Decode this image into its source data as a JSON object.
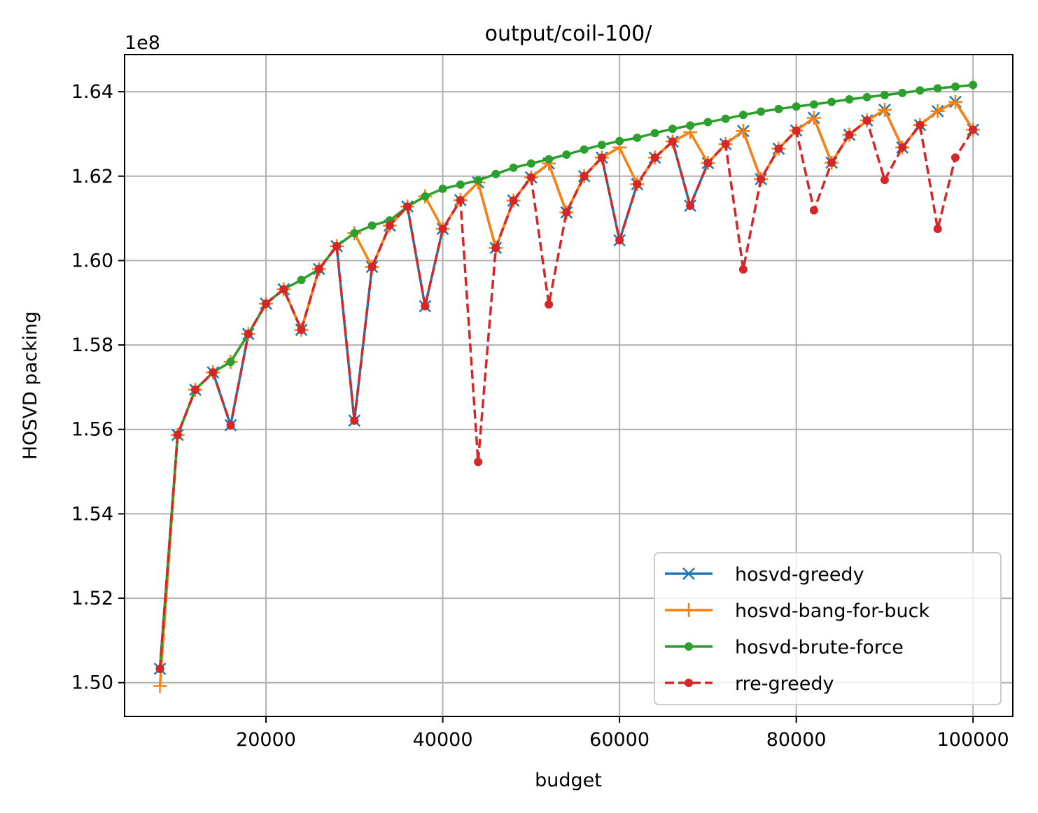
{
  "chart_data": {
    "type": "line",
    "title": "output/coil-100/",
    "xlabel": "budget",
    "ylabel": "HOSVD packing",
    "y_offset_label": "1e8",
    "y_scale": 100000000,
    "xlim": [
      4000,
      104500
    ],
    "ylim": [
      1.492,
      1.6488
    ],
    "x_ticks": [
      20000,
      40000,
      60000,
      80000,
      100000
    ],
    "x_tick_labels": [
      "20000",
      "40000",
      "60000",
      "80000",
      "100000"
    ],
    "y_ticks": [
      1.5,
      1.52,
      1.54,
      1.56,
      1.58,
      1.6,
      1.62,
      1.64
    ],
    "y_tick_labels": [
      "1.50",
      "1.52",
      "1.54",
      "1.56",
      "1.58",
      "1.60",
      "1.62",
      "1.64"
    ],
    "grid": true,
    "legend_position": "lower-right",
    "x": [
      8000,
      10000,
      12000,
      14000,
      16000,
      18000,
      20000,
      22000,
      24000,
      26000,
      28000,
      30000,
      32000,
      34000,
      36000,
      38000,
      40000,
      42000,
      44000,
      46000,
      48000,
      50000,
      52000,
      54000,
      56000,
      58000,
      60000,
      62000,
      64000,
      66000,
      68000,
      70000,
      72000,
      74000,
      76000,
      78000,
      80000,
      82000,
      84000,
      86000,
      88000,
      90000,
      92000,
      94000,
      96000,
      98000,
      100000
    ],
    "series": [
      {
        "name": "hosvd-greedy",
        "color": "#1f77b4",
        "marker": "x",
        "linestyle": "solid",
        "values": [
          1.5033,
          1.5587,
          1.5694,
          1.5735,
          1.561,
          1.5826,
          1.5898,
          1.5932,
          1.5836,
          1.598,
          1.6034,
          1.5621,
          1.5985,
          1.6083,
          1.6128,
          1.5892,
          1.6075,
          1.6143,
          1.6185,
          1.603,
          1.6142,
          1.6197,
          1.623,
          1.6114,
          1.62,
          1.6244,
          1.6048,
          1.6181,
          1.6244,
          1.6282,
          1.613,
          1.6231,
          1.6276,
          1.6307,
          1.6193,
          1.6265,
          1.6308,
          1.6338,
          1.6232,
          1.6298,
          1.6332,
          1.6357,
          1.6268,
          1.6321,
          1.6354,
          1.6376,
          1.631
        ]
      },
      {
        "name": "hosvd-bang-for-buck",
        "color": "#ff7f0e",
        "marker": "+",
        "linestyle": "solid",
        "values": [
          1.4992,
          1.5587,
          1.5694,
          1.5735,
          1.576,
          1.5826,
          1.5898,
          1.5932,
          1.5836,
          1.598,
          1.6034,
          1.6065,
          1.5985,
          1.6083,
          1.6128,
          1.6152,
          1.6075,
          1.6143,
          1.6185,
          1.603,
          1.6142,
          1.6197,
          1.623,
          1.6114,
          1.62,
          1.6244,
          1.6268,
          1.6181,
          1.6244,
          1.6282,
          1.6304,
          1.6231,
          1.6276,
          1.6307,
          1.6193,
          1.6265,
          1.6308,
          1.6338,
          1.6232,
          1.6298,
          1.6332,
          1.6357,
          1.6268,
          1.6321,
          1.6354,
          1.6376,
          1.631
        ]
      },
      {
        "name": "hosvd-brute-force",
        "color": "#2ca02c",
        "marker": "dot",
        "linestyle": "solid",
        "values": [
          1.5033,
          1.5587,
          1.5694,
          1.5735,
          1.576,
          1.5826,
          1.5898,
          1.5932,
          1.5954,
          1.598,
          1.6034,
          1.6065,
          1.6083,
          1.6095,
          1.6128,
          1.6152,
          1.617,
          1.618,
          1.619,
          1.6205,
          1.622,
          1.623,
          1.624,
          1.6251,
          1.6263,
          1.6274,
          1.6283,
          1.6291,
          1.6302,
          1.6312,
          1.632,
          1.6328,
          1.6336,
          1.6345,
          1.6353,
          1.6359,
          1.6365,
          1.637,
          1.6376,
          1.6382,
          1.6387,
          1.6392,
          1.6397,
          1.6403,
          1.6408,
          1.6412,
          1.6416
        ]
      },
      {
        "name": "rre-greedy",
        "color": "#d62728",
        "marker": "dot",
        "linestyle": "dashed",
        "values": [
          1.5033,
          1.5587,
          1.5694,
          1.5735,
          1.561,
          1.5826,
          1.5898,
          1.5932,
          1.5836,
          1.598,
          1.6034,
          1.5621,
          1.5985,
          1.6083,
          1.6128,
          1.5892,
          1.6075,
          1.6143,
          1.5523,
          1.603,
          1.6142,
          1.6197,
          1.5896,
          1.6114,
          1.62,
          1.6244,
          1.6048,
          1.6181,
          1.6244,
          1.6282,
          1.613,
          1.6231,
          1.6276,
          1.5979,
          1.6193,
          1.6265,
          1.6308,
          1.6119,
          1.6232,
          1.6298,
          1.6332,
          1.6191,
          1.6268,
          1.6321,
          1.6075,
          1.6244,
          1.631
        ]
      }
    ]
  }
}
